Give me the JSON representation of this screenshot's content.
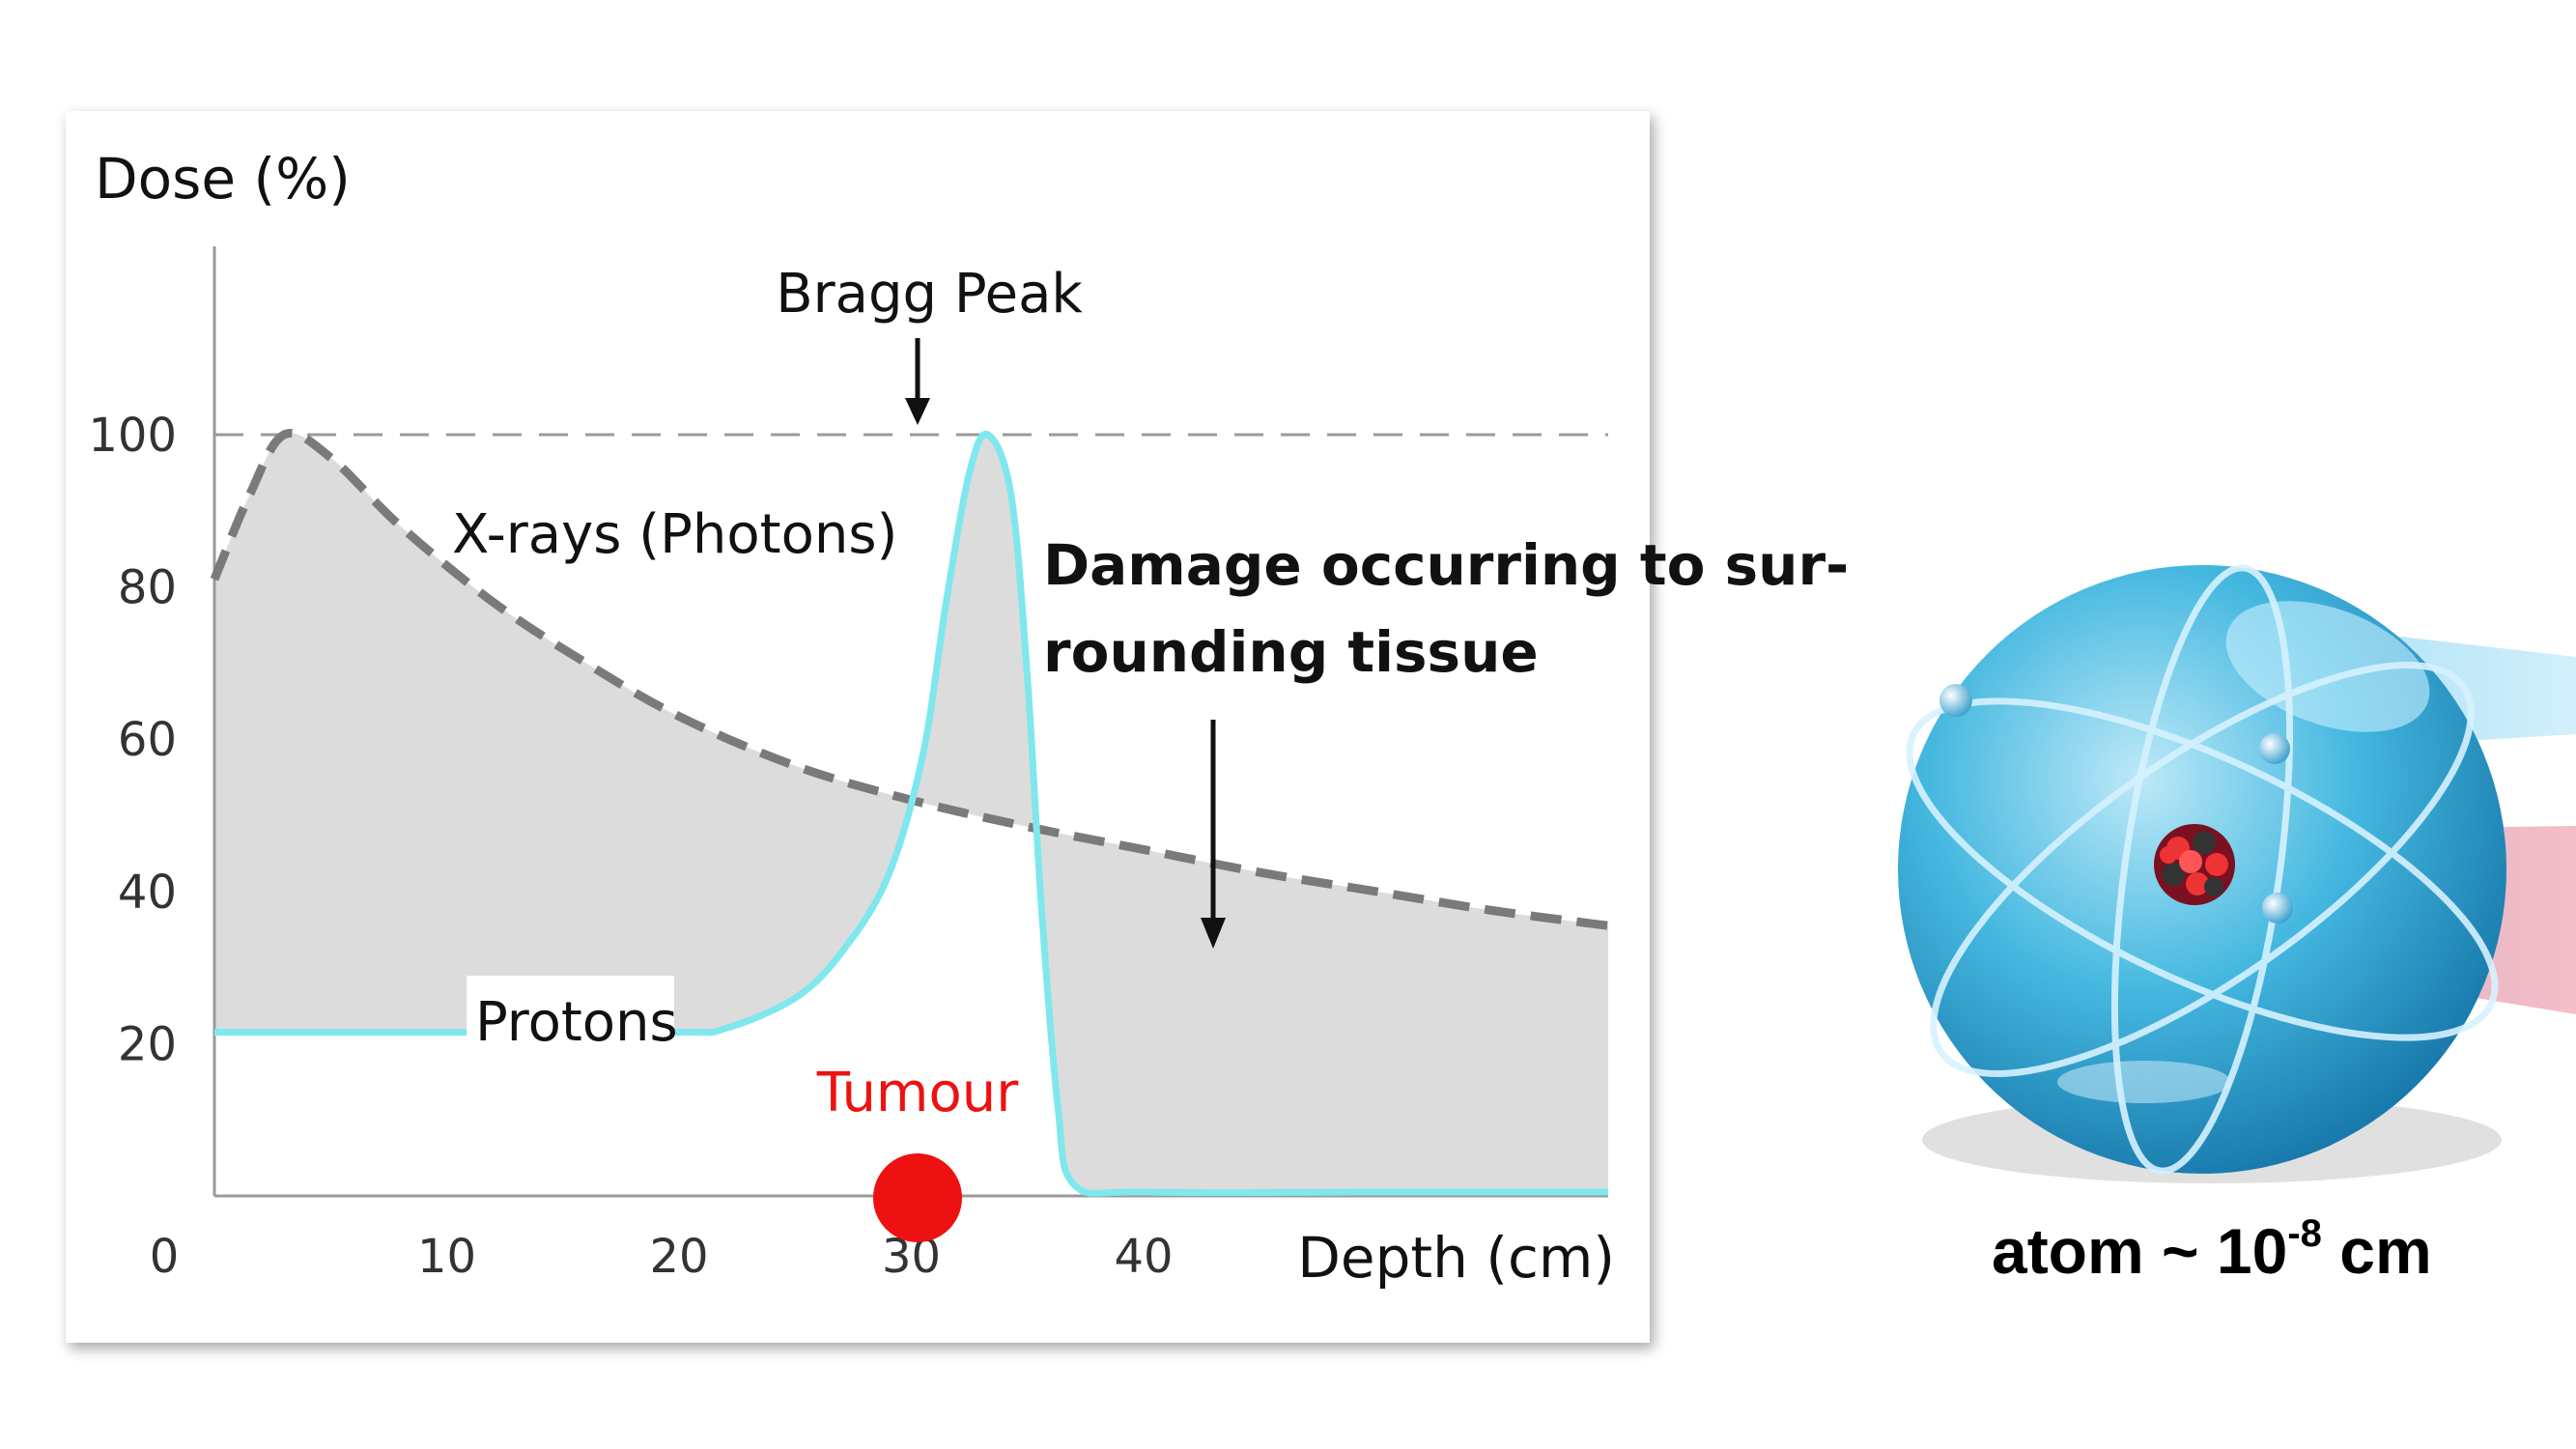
{
  "chart_data": {
    "type": "line",
    "ylabel": "Dose (%)",
    "xlabel": "Depth (cm)",
    "xlim": [
      0,
      60
    ],
    "ylim": [
      0,
      110
    ],
    "x_ticks": [
      "0",
      "10",
      "20",
      "30",
      "40"
    ],
    "y_ticks": [
      "100",
      "80",
      "60",
      "40",
      "20"
    ],
    "series": [
      {
        "name": "X-rays (Photons)",
        "style": "dashed",
        "color": "#7a7a7a",
        "x": [
          0,
          1.5,
          3,
          5,
          8,
          12,
          16,
          20,
          25,
          30,
          35,
          40,
          45,
          50,
          55,
          60
        ],
        "values": [
          81,
          92,
          100,
          97,
          88,
          78,
          70,
          63,
          56.5,
          52,
          48.5,
          45.5,
          42.5,
          40,
          37.5,
          35.5
        ]
      },
      {
        "name": "Protons",
        "style": "solid",
        "color": "#7ee8ee",
        "x": [
          0,
          10,
          20,
          22,
          25,
          27,
          29,
          30.5,
          31.5,
          32.5,
          33.3,
          34.3,
          35,
          35.6,
          36.3,
          37,
          40,
          50,
          60
        ],
        "values": [
          21.5,
          21.5,
          21.5,
          22,
          26,
          32,
          42,
          58,
          78,
          95,
          100,
          92,
          68,
          38,
          12,
          1.5,
          0.5,
          0.5,
          0.5
        ]
      }
    ],
    "annotations": {
      "bragg_peak": "Bragg Peak",
      "photons": "X-rays (Photons)",
      "protons": "Protons",
      "tumour": "Tumour",
      "damage_line1": "Damage occurring to sur-",
      "damage_line2": "rounding tissue"
    },
    "reference_line_y": 100,
    "colors": {
      "tumour": "#ee1111",
      "shade": "#dcdcdc",
      "proton": "#7ee8ee",
      "photon": "#7a7a7a"
    }
  },
  "atom": {
    "caption_prefix": "atom ~ 10",
    "exponent": "-8",
    "caption_suffix": " cm"
  }
}
